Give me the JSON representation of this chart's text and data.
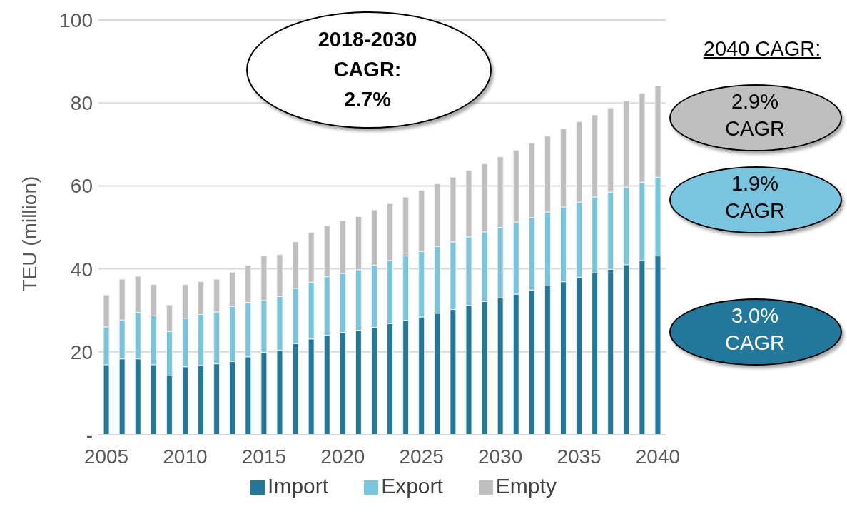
{
  "chart_data": {
    "type": "bar",
    "stacked": true,
    "ylabel": "TEU (million)",
    "categories": [
      "2005",
      null,
      null,
      null,
      null,
      "2010",
      null,
      null,
      null,
      null,
      "2015",
      null,
      null,
      null,
      null,
      "2020",
      null,
      null,
      null,
      null,
      "2025",
      null,
      null,
      null,
      null,
      "2030",
      null,
      null,
      null,
      null,
      "2035",
      null,
      null,
      null,
      null,
      "2040"
    ],
    "series": [
      {
        "name": "Import",
        "color": "#21789a",
        "values": [
          16.9,
          18.3,
          18.3,
          16.9,
          14.2,
          16.4,
          16.7,
          17.1,
          17.7,
          18.8,
          19.9,
          20.4,
          22.0,
          23.1,
          24.0,
          24.7,
          25.2,
          25.9,
          26.8,
          27.6,
          28.4,
          29.3,
          30.2,
          31.2,
          32.1,
          33.0,
          33.9,
          34.9,
          35.9,
          36.9,
          38.0,
          39.0,
          39.9,
          41.0,
          42.0,
          43.1
        ]
      },
      {
        "name": "Export",
        "color": "#79c5dd",
        "values": [
          9.1,
          9.4,
          11.2,
          11.8,
          10.7,
          11.7,
          12.3,
          12.5,
          13.2,
          13.1,
          12.5,
          12.9,
          13.3,
          13.7,
          14.1,
          14.2,
          14.6,
          15.0,
          15.2,
          15.5,
          15.8,
          16.1,
          16.3,
          16.5,
          16.8,
          17.0,
          17.4,
          17.5,
          17.8,
          18.0,
          18.1,
          18.3,
          18.6,
          18.7,
          18.9,
          19.0
        ]
      },
      {
        "name": "Empty",
        "color": "#bfbfbf",
        "values": [
          7.7,
          9.8,
          8.7,
          7.5,
          6.4,
          8.1,
          7.9,
          7.9,
          8.3,
          8.9,
          10.7,
          10.1,
          11.2,
          12.0,
          12.3,
          12.7,
          12.8,
          13.3,
          13.7,
          14.2,
          14.7,
          15.1,
          15.6,
          16.0,
          16.4,
          17.0,
          17.3,
          17.9,
          18.3,
          18.9,
          19.4,
          19.8,
          20.3,
          20.8,
          21.4,
          22.0
        ]
      }
    ],
    "ylim": [
      0,
      100
    ],
    "yticks": [
      {
        "value": 0,
        "label": "-"
      },
      20,
      40,
      60,
      80,
      100
    ],
    "grid": "y",
    "legend": "bottom",
    "annotations": [
      "2018-2030 CAGR: 2.7%",
      "2040 CAGR:",
      "2.9% CAGR",
      "1.9% CAGR",
      "3.0% CAGR"
    ]
  }
}
